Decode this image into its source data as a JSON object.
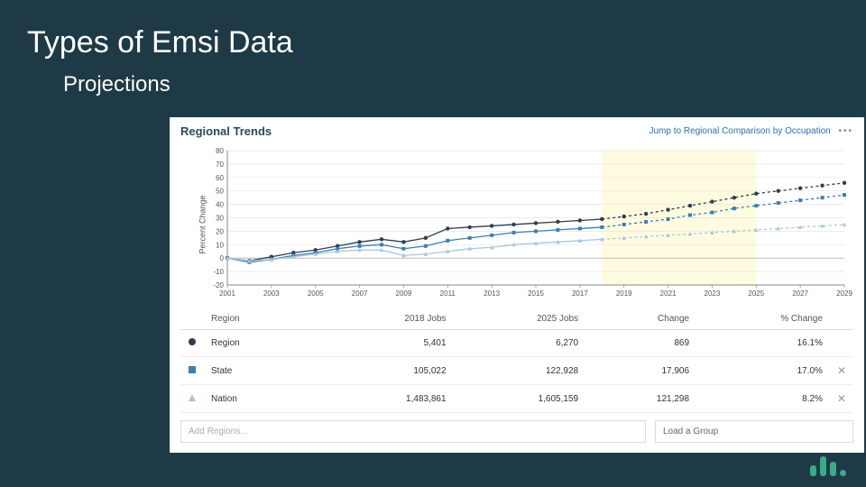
{
  "slide": {
    "title": "Types of Emsi Data",
    "subtitle": "Projections",
    "background_color": "#1e3a47",
    "title_color": "#ffffff",
    "title_fontsize": 34,
    "subtitle_fontsize": 24
  },
  "panel": {
    "title": "Regional Trends",
    "link_text": "Jump to Regional Comparison by Occupation",
    "link_color": "#2a6fb5",
    "more_icon": "•••"
  },
  "chart": {
    "type": "line",
    "ylabel": "Percent Change",
    "ylim": [
      -20,
      80
    ],
    "ytick_step": 10,
    "xlim": [
      2001,
      2029
    ],
    "xtick_step": 2,
    "projection_band": {
      "start": 2018,
      "end": 2025,
      "fill": "#fffbe0"
    },
    "grid_color": "#e6e6e6",
    "axis_color": "#888888",
    "label_fontsize": 8,
    "background": "#ffffff",
    "series": [
      {
        "name": "Region",
        "marker": "circle",
        "color": "#2e3d4f",
        "dash_after": 2018,
        "values": [
          [
            2001,
            0
          ],
          [
            2002,
            -2
          ],
          [
            2003,
            1
          ],
          [
            2004,
            4
          ],
          [
            2005,
            6
          ],
          [
            2006,
            9
          ],
          [
            2007,
            12
          ],
          [
            2008,
            14
          ],
          [
            2009,
            12
          ],
          [
            2010,
            15
          ],
          [
            2011,
            22
          ],
          [
            2012,
            23
          ],
          [
            2013,
            24
          ],
          [
            2014,
            25
          ],
          [
            2015,
            26
          ],
          [
            2016,
            27
          ],
          [
            2017,
            28
          ],
          [
            2018,
            29
          ],
          [
            2019,
            31
          ],
          [
            2020,
            33
          ],
          [
            2021,
            36
          ],
          [
            2022,
            39
          ],
          [
            2023,
            42
          ],
          [
            2024,
            45
          ],
          [
            2025,
            48
          ],
          [
            2026,
            50
          ],
          [
            2027,
            52
          ],
          [
            2028,
            54
          ],
          [
            2029,
            56
          ]
        ]
      },
      {
        "name": "State",
        "marker": "square",
        "color": "#3b7fb5",
        "dash_after": 2018,
        "values": [
          [
            2001,
            0
          ],
          [
            2002,
            -3
          ],
          [
            2003,
            -1
          ],
          [
            2004,
            2
          ],
          [
            2005,
            4
          ],
          [
            2006,
            7
          ],
          [
            2007,
            9
          ],
          [
            2008,
            10
          ],
          [
            2009,
            7
          ],
          [
            2010,
            9
          ],
          [
            2011,
            13
          ],
          [
            2012,
            15
          ],
          [
            2013,
            17
          ],
          [
            2014,
            19
          ],
          [
            2015,
            20
          ],
          [
            2016,
            21
          ],
          [
            2017,
            22
          ],
          [
            2018,
            23
          ],
          [
            2019,
            25
          ],
          [
            2020,
            27
          ],
          [
            2021,
            29
          ],
          [
            2022,
            32
          ],
          [
            2023,
            34
          ],
          [
            2024,
            37
          ],
          [
            2025,
            39
          ],
          [
            2026,
            41
          ],
          [
            2027,
            43
          ],
          [
            2028,
            45
          ],
          [
            2029,
            47
          ]
        ]
      },
      {
        "name": "Nation",
        "marker": "triangle",
        "color": "#a9c7db",
        "dash_after": 2018,
        "values": [
          [
            2001,
            0
          ],
          [
            2002,
            -2
          ],
          [
            2003,
            -1
          ],
          [
            2004,
            1
          ],
          [
            2005,
            3
          ],
          [
            2006,
            5
          ],
          [
            2007,
            6
          ],
          [
            2008,
            6
          ],
          [
            2009,
            2
          ],
          [
            2010,
            3
          ],
          [
            2011,
            5
          ],
          [
            2012,
            7
          ],
          [
            2013,
            8
          ],
          [
            2014,
            10
          ],
          [
            2015,
            11
          ],
          [
            2016,
            12
          ],
          [
            2017,
            13
          ],
          [
            2018,
            14
          ],
          [
            2019,
            15
          ],
          [
            2020,
            16
          ],
          [
            2021,
            17
          ],
          [
            2022,
            18
          ],
          [
            2023,
            19
          ],
          [
            2024,
            20
          ],
          [
            2025,
            21
          ],
          [
            2026,
            22
          ],
          [
            2027,
            23
          ],
          [
            2028,
            24
          ],
          [
            2029,
            25
          ]
        ]
      }
    ]
  },
  "table": {
    "columns": [
      "Region",
      "2018 Jobs",
      "2025 Jobs",
      "Change",
      "% Change"
    ],
    "rows": [
      {
        "marker": "circle",
        "marker_color": "#2e3d4f",
        "label": "Region",
        "jobs2018": "5,401",
        "jobs2025": "6,270",
        "change": "869",
        "pct": "16.1%",
        "closeable": false
      },
      {
        "marker": "square",
        "marker_color": "#3b7fb5",
        "label": "State",
        "jobs2018": "105,022",
        "jobs2025": "122,928",
        "change": "17,906",
        "pct": "17.0%",
        "closeable": true
      },
      {
        "marker": "triangle",
        "marker_color": "#a9c7db",
        "label": "Nation",
        "jobs2018": "1,483,861",
        "jobs2025": "1,605,159",
        "change": "121,298",
        "pct": "8.2%",
        "closeable": true
      }
    ]
  },
  "footer": {
    "add_placeholder": "Add Regions...",
    "load_group_label": "Load a Group"
  },
  "logo": {
    "color": "#3aab87",
    "bars": [
      12,
      22,
      16
    ],
    "dot": true
  }
}
